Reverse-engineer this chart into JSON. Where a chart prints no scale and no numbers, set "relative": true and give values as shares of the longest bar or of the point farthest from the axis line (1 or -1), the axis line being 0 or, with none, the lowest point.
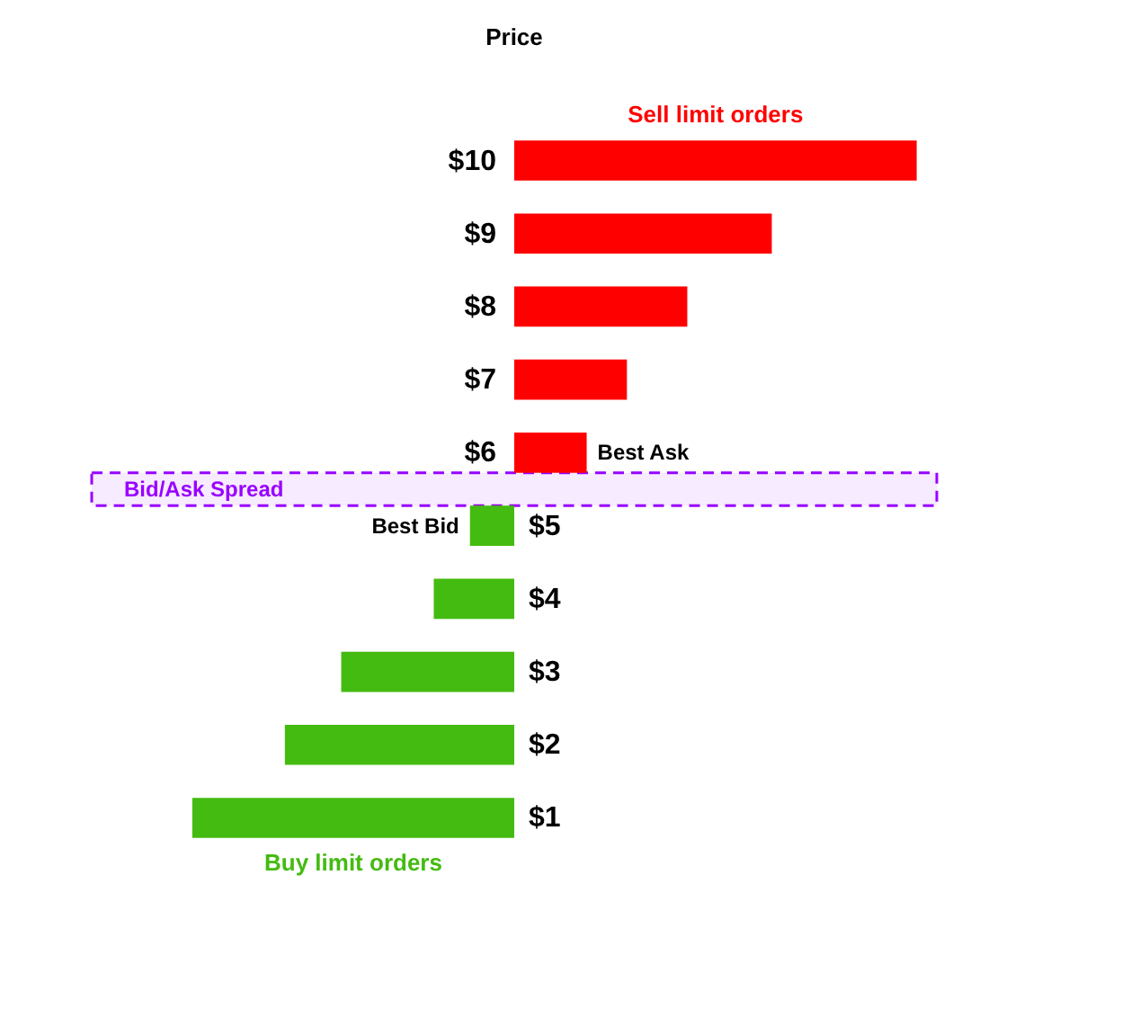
{
  "chart_data": {
    "type": "bar",
    "orientation": "horizontal",
    "relative": true,
    "title": "Price",
    "categories": [
      "$10",
      "$9",
      "$8",
      "$7",
      "$6",
      "$5",
      "$4",
      "$3",
      "$2",
      "$1"
    ],
    "series": [
      {
        "name": "Sell limit orders",
        "color": "#ff0000",
        "values": [
          1,
          0.64,
          0.43,
          0.28,
          0.18,
          null,
          null,
          null,
          null,
          null
        ]
      },
      {
        "name": "Buy limit orders",
        "color": "#44bb11",
        "values": [
          null,
          null,
          null,
          null,
          null,
          -0.11,
          -0.2,
          -0.43,
          -0.57,
          -0.8
        ]
      }
    ],
    "bands": [
      {
        "axis": "y",
        "from": "$6",
        "to": "$5",
        "label": "Bid/Ask Spread",
        "color": "#9900ff"
      }
    ],
    "annotations": [
      {
        "text": "Best Ask",
        "x": 0.18,
        "y": "$6"
      },
      {
        "text": "Best Bid",
        "x": -0.11,
        "y": "$5"
      }
    ]
  }
}
